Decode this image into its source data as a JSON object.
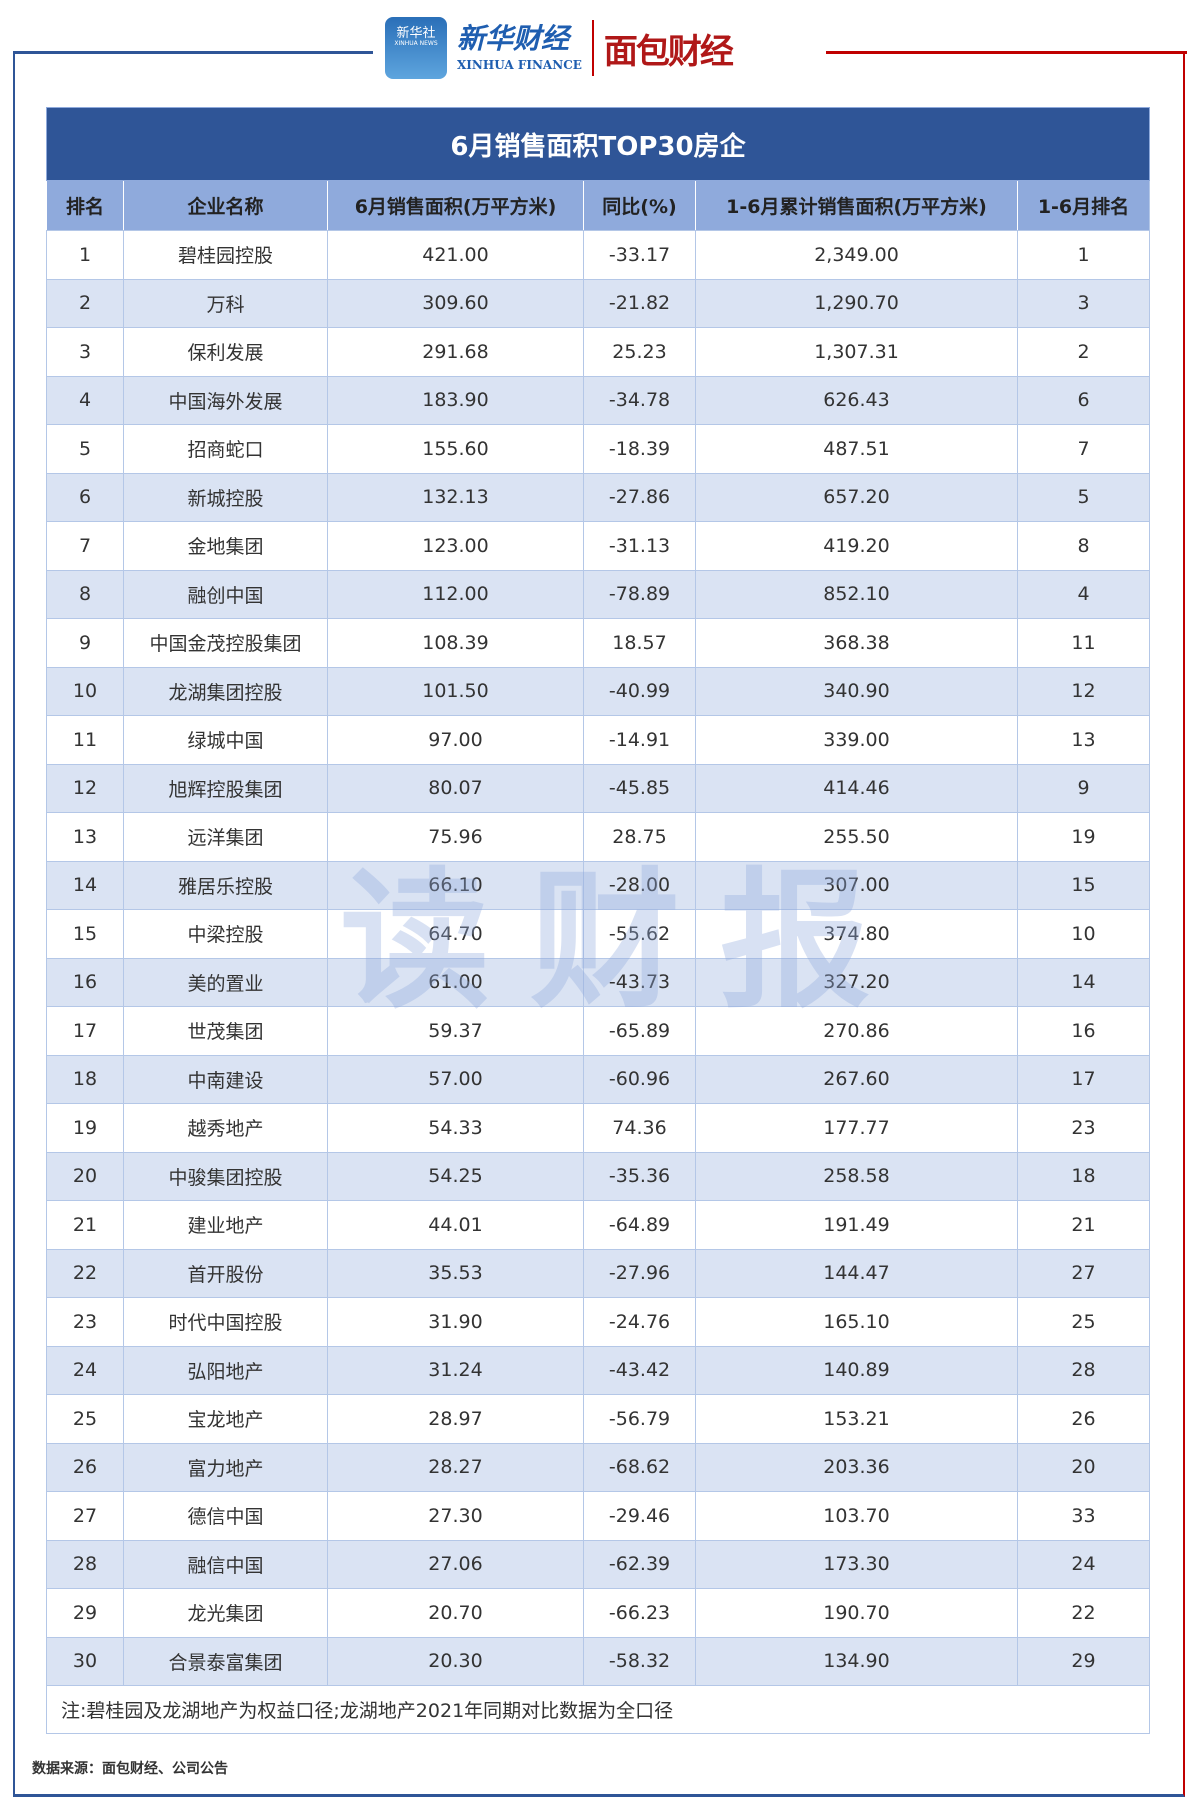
{
  "logos": {
    "xinhua_badge": "新华社",
    "xinhua_badge_en": "XINHUA NEWS",
    "xinhua_finance": "新华财经",
    "xinhua_finance_en": "XINHUA FINANCE",
    "mianbao": "面包财经"
  },
  "title": "6月销售面积TOP30房企",
  "headers": [
    "排名",
    "企业名称",
    "6月销售面积(万平方米)",
    "同比(%)",
    "1-6月累计销售面积(万平方米)",
    "1-6月排名"
  ],
  "rows": [
    [
      "1",
      "碧桂园控股",
      "421.00",
      "-33.17",
      "2,349.00",
      "1"
    ],
    [
      "2",
      "万科",
      "309.60",
      "-21.82",
      "1,290.70",
      "3"
    ],
    [
      "3",
      "保利发展",
      "291.68",
      "25.23",
      "1,307.31",
      "2"
    ],
    [
      "4",
      "中国海外发展",
      "183.90",
      "-34.78",
      "626.43",
      "6"
    ],
    [
      "5",
      "招商蛇口",
      "155.60",
      "-18.39",
      "487.51",
      "7"
    ],
    [
      "6",
      "新城控股",
      "132.13",
      "-27.86",
      "657.20",
      "5"
    ],
    [
      "7",
      "金地集团",
      "123.00",
      "-31.13",
      "419.20",
      "8"
    ],
    [
      "8",
      "融创中国",
      "112.00",
      "-78.89",
      "852.10",
      "4"
    ],
    [
      "9",
      "中国金茂控股集团",
      "108.39",
      "18.57",
      "368.38",
      "11"
    ],
    [
      "10",
      "龙湖集团控股",
      "101.50",
      "-40.99",
      "340.90",
      "12"
    ],
    [
      "11",
      "绿城中国",
      "97.00",
      "-14.91",
      "339.00",
      "13"
    ],
    [
      "12",
      "旭辉控股集团",
      "80.07",
      "-45.85",
      "414.46",
      "9"
    ],
    [
      "13",
      "远洋集团",
      "75.96",
      "28.75",
      "255.50",
      "19"
    ],
    [
      "14",
      "雅居乐控股",
      "66.10",
      "-28.00",
      "307.00",
      "15"
    ],
    [
      "15",
      "中梁控股",
      "64.70",
      "-55.62",
      "374.80",
      "10"
    ],
    [
      "16",
      "美的置业",
      "61.00",
      "-43.73",
      "327.20",
      "14"
    ],
    [
      "17",
      "世茂集团",
      "59.37",
      "-65.89",
      "270.86",
      "16"
    ],
    [
      "18",
      "中南建设",
      "57.00",
      "-60.96",
      "267.60",
      "17"
    ],
    [
      "19",
      "越秀地产",
      "54.33",
      "74.36",
      "177.77",
      "23"
    ],
    [
      "20",
      "中骏集团控股",
      "54.25",
      "-35.36",
      "258.58",
      "18"
    ],
    [
      "21",
      "建业地产",
      "44.01",
      "-64.89",
      "191.49",
      "21"
    ],
    [
      "22",
      "首开股份",
      "35.53",
      "-27.96",
      "144.47",
      "27"
    ],
    [
      "23",
      "时代中国控股",
      "31.90",
      "-24.76",
      "165.10",
      "25"
    ],
    [
      "24",
      "弘阳地产",
      "31.24",
      "-43.42",
      "140.89",
      "28"
    ],
    [
      "25",
      "宝龙地产",
      "28.97",
      "-56.79",
      "153.21",
      "26"
    ],
    [
      "26",
      "富力地产",
      "28.27",
      "-68.62",
      "203.36",
      "20"
    ],
    [
      "27",
      "德信中国",
      "27.30",
      "-29.46",
      "103.70",
      "33"
    ],
    [
      "28",
      "融信中国",
      "27.06",
      "-62.39",
      "173.30",
      "24"
    ],
    [
      "29",
      "龙光集团",
      "20.70",
      "-66.23",
      "190.70",
      "22"
    ],
    [
      "30",
      "合景泰富集团",
      "20.30",
      "-58.32",
      "134.90",
      "29"
    ]
  ],
  "note": "注:碧桂园及龙湖地产为权益口径;龙湖地产2021年同期对比数据为全口径",
  "watermark": "读财报",
  "source": "数据来源：面包财经、公司公告",
  "colors": {
    "title_bg": "#2f5597",
    "header_bg": "#8faadc",
    "alt_row": "#dae3f3",
    "accent_red": "#c00000"
  }
}
